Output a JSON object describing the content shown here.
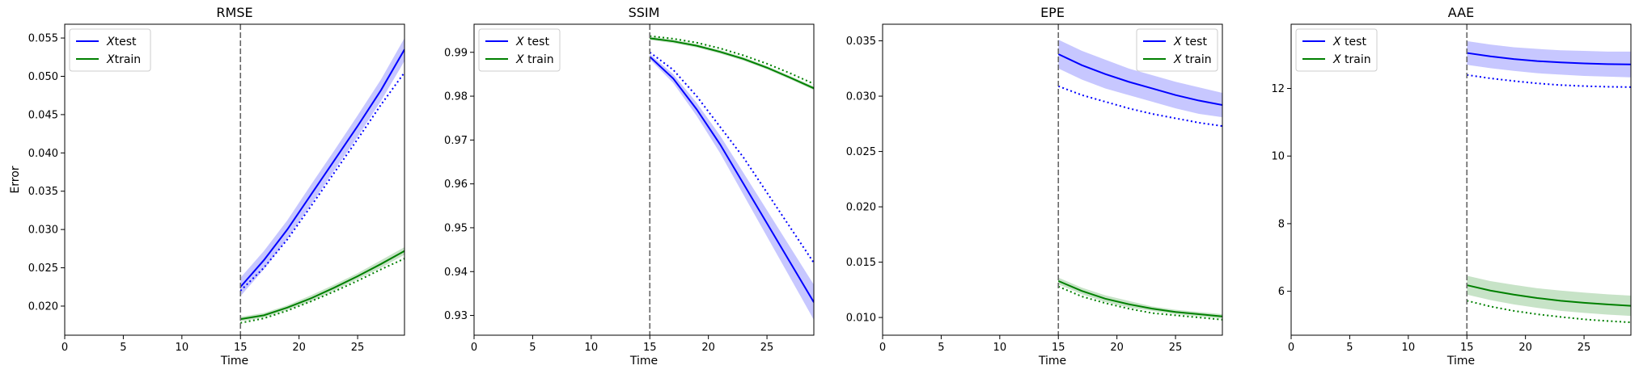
{
  "chart_data": [
    {
      "type": "line",
      "title": "RMSE",
      "xlabel": "Time",
      "ylabel": "Error",
      "xlim": [
        0,
        29
      ],
      "ylim": [
        0.0162,
        0.0568
      ],
      "xticks": [
        0,
        5,
        10,
        15,
        20,
        25
      ],
      "yticks": [
        0.02,
        0.025,
        0.03,
        0.035,
        0.04,
        0.045,
        0.05,
        0.055
      ],
      "ytick_labels": [
        "0.020",
        "0.025",
        "0.030",
        "0.035",
        "0.040",
        "0.045",
        "0.050",
        "0.055"
      ],
      "vline_x": 15,
      "legend_position": "upper left",
      "legend": [
        {
          "italic": "X",
          "text": "test",
          "color": "#0000ff"
        },
        {
          "italic": "X",
          "text": "train",
          "color": "#008000"
        }
      ],
      "x": [
        15,
        17,
        19,
        21,
        23,
        25,
        27,
        29
      ],
      "series": [
        {
          "color": "#0000ff",
          "style": "solid",
          "values": [
            0.0225,
            0.026,
            0.03,
            0.0345,
            0.039,
            0.0435,
            0.0482,
            0.0535
          ],
          "band": [
            0.0012,
            0.0012,
            0.0012,
            0.0013,
            0.0013,
            0.0014,
            0.0014,
            0.0015
          ]
        },
        {
          "color": "#0000ff",
          "style": "dotted",
          "values": [
            0.022,
            0.025,
            0.0287,
            0.033,
            0.0374,
            0.0418,
            0.0463,
            0.0505
          ]
        },
        {
          "color": "#008000",
          "style": "solid",
          "values": [
            0.0183,
            0.0188,
            0.0198,
            0.021,
            0.0224,
            0.0239,
            0.0255,
            0.0272
          ],
          "band": [
            0.0003,
            0.0003,
            0.0003,
            0.0004,
            0.0004,
            0.0004,
            0.0005,
            0.0005
          ]
        },
        {
          "color": "#008000",
          "style": "dotted",
          "values": [
            0.0178,
            0.0184,
            0.0194,
            0.0206,
            0.0219,
            0.0233,
            0.0248,
            0.0262
          ]
        }
      ]
    },
    {
      "type": "line",
      "title": "SSIM",
      "xlabel": "Time",
      "ylabel": "",
      "xlim": [
        0,
        29
      ],
      "ylim": [
        0.9255,
        0.9964
      ],
      "xticks": [
        0,
        5,
        10,
        15,
        20,
        25
      ],
      "yticks": [
        0.93,
        0.94,
        0.95,
        0.96,
        0.97,
        0.98,
        0.99
      ],
      "ytick_labels": [
        "0.93",
        "0.94",
        "0.95",
        "0.96",
        "0.97",
        "0.98",
        "0.99"
      ],
      "vline_x": 15,
      "legend_position": "upper left",
      "legend": [
        {
          "italic": "X",
          "text": " test",
          "color": "#0000ff"
        },
        {
          "italic": "X",
          "text": " train",
          "color": "#008000"
        }
      ],
      "x": [
        15,
        17,
        19,
        21,
        23,
        25,
        27,
        29
      ],
      "series": [
        {
          "color": "#0000ff",
          "style": "solid",
          "values": [
            0.989,
            0.984,
            0.977,
            0.969,
            0.96,
            0.951,
            0.942,
            0.933
          ],
          "band": [
            0.0006,
            0.001,
            0.0015,
            0.002,
            0.0025,
            0.003,
            0.0035,
            0.004
          ]
        },
        {
          "color": "#0000ff",
          "style": "dotted",
          "values": [
            0.99,
            0.986,
            0.98,
            0.973,
            0.966,
            0.958,
            0.95,
            0.942
          ]
        },
        {
          "color": "#008000",
          "style": "solid",
          "values": [
            0.9932,
            0.9925,
            0.9915,
            0.9901,
            0.9885,
            0.9865,
            0.9842,
            0.9818
          ],
          "band": [
            0.0004,
            0.0004,
            0.0004,
            0.0004,
            0.0004,
            0.0004,
            0.0004,
            0.0004
          ]
        },
        {
          "color": "#008000",
          "style": "dotted",
          "values": [
            0.9937,
            0.9931,
            0.9922,
            0.9909,
            0.9893,
            0.9874,
            0.9852,
            0.9828
          ]
        }
      ]
    },
    {
      "type": "line",
      "title": "EPE",
      "xlabel": "Time",
      "ylabel": "",
      "xlim": [
        0,
        29
      ],
      "ylim": [
        0.0084,
        0.0365
      ],
      "xticks": [
        0,
        5,
        10,
        15,
        20,
        25
      ],
      "yticks": [
        0.01,
        0.015,
        0.02,
        0.025,
        0.03,
        0.035
      ],
      "ytick_labels": [
        "0.010",
        "0.015",
        "0.020",
        "0.025",
        "0.030",
        "0.035"
      ],
      "vline_x": 15,
      "legend_position": "upper right",
      "legend": [
        {
          "italic": "X",
          "text": " test",
          "color": "#0000ff"
        },
        {
          "italic": "X",
          "text": " train",
          "color": "#008000"
        }
      ],
      "x": [
        15,
        17,
        19,
        21,
        23,
        25,
        27,
        29
      ],
      "series": [
        {
          "color": "#0000ff",
          "style": "solid",
          "values": [
            0.0338,
            0.0328,
            0.032,
            0.0313,
            0.0307,
            0.0301,
            0.0296,
            0.0292
          ],
          "band": [
            0.0013,
            0.0013,
            0.0013,
            0.0012,
            0.0012,
            0.0012,
            0.0012,
            0.0011
          ]
        },
        {
          "color": "#0000ff",
          "style": "dotted",
          "values": [
            0.0309,
            0.0301,
            0.0295,
            0.0289,
            0.0284,
            0.028,
            0.0276,
            0.0273
          ]
        },
        {
          "color": "#008000",
          "style": "solid",
          "values": [
            0.0133,
            0.0124,
            0.0117,
            0.0112,
            0.0108,
            0.0105,
            0.0103,
            0.0101
          ],
          "band": [
            0.0003,
            0.0003,
            0.0003,
            0.0003,
            0.0002,
            0.0002,
            0.0002,
            0.0002
          ]
        },
        {
          "color": "#008000",
          "style": "dotted",
          "values": [
            0.0128,
            0.0119,
            0.0113,
            0.0108,
            0.0104,
            0.0102,
            0.01,
            0.0098
          ]
        }
      ]
    },
    {
      "type": "line",
      "title": "AAE",
      "xlabel": "Time",
      "ylabel": "",
      "xlim": [
        0,
        29
      ],
      "ylim": [
        4.7,
        13.9
      ],
      "xticks": [
        0,
        5,
        10,
        15,
        20,
        25
      ],
      "yticks": [
        6,
        8,
        10,
        12
      ],
      "ytick_labels": [
        "6",
        "8",
        "10",
        "12"
      ],
      "vline_x": 15,
      "legend_position": "upper left",
      "legend": [
        {
          "italic": "X",
          "text": " test",
          "color": "#0000ff"
        },
        {
          "italic": "X",
          "text": " train",
          "color": "#008000"
        }
      ],
      "x": [
        15,
        17,
        19,
        21,
        23,
        25,
        27,
        29
      ],
      "series": [
        {
          "color": "#0000ff",
          "style": "solid",
          "values": [
            13.05,
            12.95,
            12.87,
            12.81,
            12.77,
            12.74,
            12.72,
            12.71
          ],
          "band": [
            0.35,
            0.35,
            0.35,
            0.36,
            0.36,
            0.37,
            0.37,
            0.38
          ]
        },
        {
          "color": "#0000ff",
          "style": "dotted",
          "values": [
            12.4,
            12.3,
            12.22,
            12.15,
            12.1,
            12.07,
            12.05,
            12.04
          ]
        },
        {
          "color": "#008000",
          "style": "solid",
          "values": [
            6.18,
            6.02,
            5.9,
            5.8,
            5.72,
            5.66,
            5.61,
            5.57
          ],
          "band": [
            0.28,
            0.28,
            0.29,
            0.29,
            0.3,
            0.3,
            0.3,
            0.3
          ]
        },
        {
          "color": "#008000",
          "style": "dotted",
          "values": [
            5.72,
            5.55,
            5.42,
            5.32,
            5.24,
            5.17,
            5.12,
            5.08
          ]
        }
      ]
    }
  ]
}
